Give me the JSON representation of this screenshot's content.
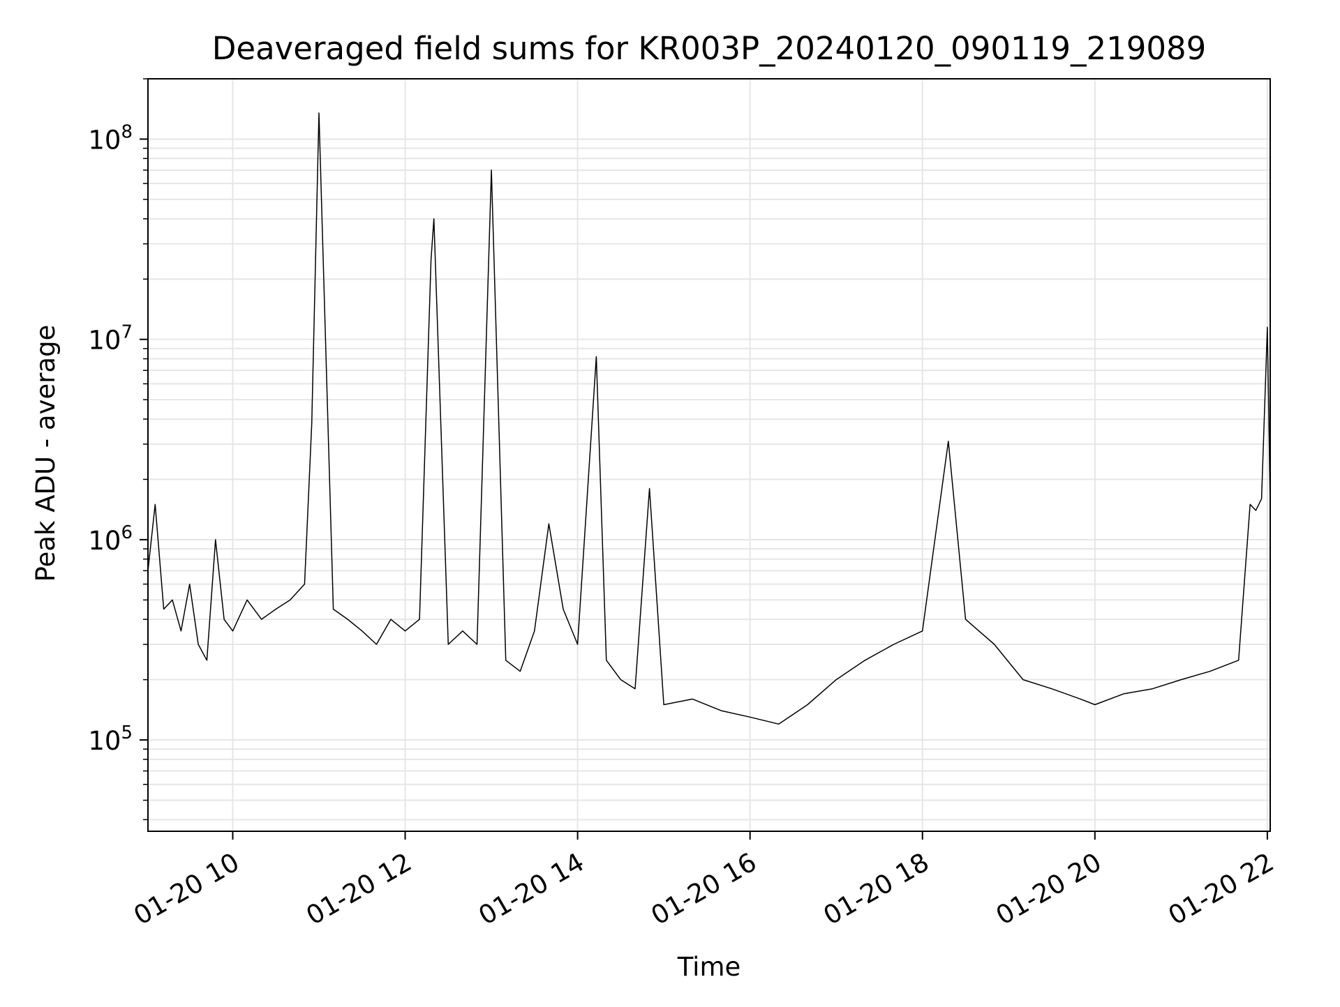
{
  "chart_data": {
    "type": "line",
    "title": "Deaveraged field sums for KR003P_20240120_090119_219089",
    "xlabel": "Time",
    "ylabel": "Peak ADU - average",
    "x_scale": "time",
    "y_scale": "log",
    "xlim": [
      "2024-01-20 09:01",
      "2024-01-20 22:02"
    ],
    "ylim": [
      35000,
      200000000
    ],
    "grid": true,
    "line_color": "#000000",
    "grid_color": "#e6e6e6",
    "x_ticks": [
      "01-20 10",
      "01-20 12",
      "01-20 14",
      "01-20 16",
      "01-20 18",
      "01-20 20",
      "01-20 22"
    ],
    "x_tick_values": [
      "2024-01-20 10:00",
      "2024-01-20 12:00",
      "2024-01-20 14:00",
      "2024-01-20 16:00",
      "2024-01-20 18:00",
      "2024-01-20 20:00",
      "2024-01-20 22:00"
    ],
    "y_ticks": [
      {
        "base": "10",
        "exp": "5",
        "value": 100000
      },
      {
        "base": "10",
        "exp": "6",
        "value": 1000000
      },
      {
        "base": "10",
        "exp": "7",
        "value": 10000000
      },
      {
        "base": "10",
        "exp": "8",
        "value": 100000000
      }
    ],
    "series": [
      {
        "x": [
          "2024-01-20 09:01",
          "2024-01-20 09:06",
          "2024-01-20 09:12",
          "2024-01-20 09:18",
          "2024-01-20 09:24",
          "2024-01-20 09:30",
          "2024-01-20 09:36",
          "2024-01-20 09:42",
          "2024-01-20 09:48",
          "2024-01-20 09:54",
          "2024-01-20 10:00",
          "2024-01-20 10:10",
          "2024-01-20 10:20",
          "2024-01-20 10:30",
          "2024-01-20 10:40",
          "2024-01-20 10:50",
          "2024-01-20 10:55",
          "2024-01-20 11:00",
          "2024-01-20 11:10",
          "2024-01-20 11:20",
          "2024-01-20 11:30",
          "2024-01-20 11:40",
          "2024-01-20 11:50",
          "2024-01-20 12:00",
          "2024-01-20 12:10",
          "2024-01-20 12:18",
          "2024-01-20 12:20",
          "2024-01-20 12:30",
          "2024-01-20 12:40",
          "2024-01-20 12:50",
          "2024-01-20 13:00",
          "2024-01-20 13:10",
          "2024-01-20 13:20",
          "2024-01-20 13:30",
          "2024-01-20 13:40",
          "2024-01-20 13:50",
          "2024-01-20 14:00",
          "2024-01-20 14:13",
          "2024-01-20 14:20",
          "2024-01-20 14:30",
          "2024-01-20 14:40",
          "2024-01-20 14:50",
          "2024-01-20 15:00",
          "2024-01-20 15:20",
          "2024-01-20 15:40",
          "2024-01-20 16:00",
          "2024-01-20 16:20",
          "2024-01-20 16:40",
          "2024-01-20 17:00",
          "2024-01-20 17:20",
          "2024-01-20 17:40",
          "2024-01-20 18:00",
          "2024-01-20 18:18",
          "2024-01-20 18:30",
          "2024-01-20 18:50",
          "2024-01-20 19:10",
          "2024-01-20 19:30",
          "2024-01-20 19:50",
          "2024-01-20 20:00",
          "2024-01-20 20:20",
          "2024-01-20 20:40",
          "2024-01-20 21:00",
          "2024-01-20 21:20",
          "2024-01-20 21:40",
          "2024-01-20 21:48",
          "2024-01-20 21:52",
          "2024-01-20 21:56",
          "2024-01-20 22:00",
          "2024-01-20 22:02"
        ],
        "y": [
          700000,
          1500000,
          450000,
          500000,
          350000,
          600000,
          300000,
          250000,
          1000000,
          400000,
          350000,
          500000,
          400000,
          450000,
          500000,
          600000,
          3800000,
          135000000,
          450000,
          400000,
          350000,
          300000,
          400000,
          350000,
          400000,
          25000000,
          40000000,
          300000,
          350000,
          300000,
          70000000,
          250000,
          220000,
          350000,
          1200000,
          450000,
          300000,
          8200000,
          250000,
          200000,
          180000,
          1800000,
          150000,
          160000,
          140000,
          130000,
          120000,
          150000,
          200000,
          250000,
          300000,
          350000,
          3100000,
          400000,
          300000,
          200000,
          180000,
          160000,
          150000,
          170000,
          180000,
          200000,
          220000,
          250000,
          1500000,
          1400000,
          1600000,
          11500000,
          1500000
        ]
      }
    ]
  }
}
